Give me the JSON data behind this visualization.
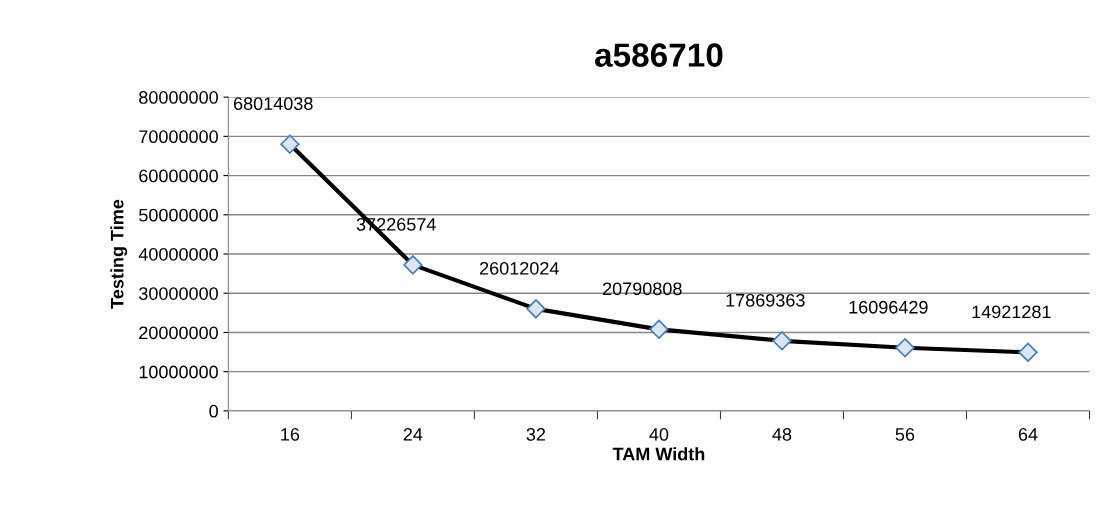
{
  "chart_data": {
    "type": "line",
    "title": "a586710",
    "xlabel": "TAM Width",
    "ylabel": "Testing Time",
    "categories": [
      "16",
      "24",
      "32",
      "40",
      "48",
      "56",
      "64"
    ],
    "series": [
      {
        "color": "#000000",
        "values": [
          68014038,
          37226574,
          26012024,
          20790808,
          17869363,
          16096429,
          14921281
        ]
      }
    ],
    "ylim": [
      0,
      80000000
    ],
    "yticks": [
      0,
      10000000,
      20000000,
      30000000,
      40000000,
      50000000,
      60000000,
      70000000,
      80000000
    ],
    "grid": "y",
    "marker": "diamond",
    "line_style": "solid",
    "data_labels": true
  }
}
